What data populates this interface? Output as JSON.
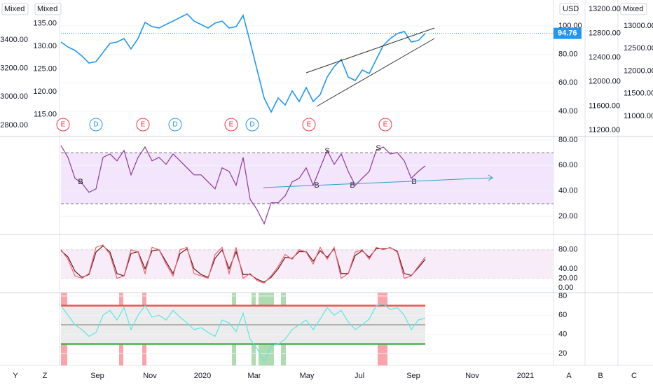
{
  "time_axis": {
    "ticks": [
      "Sep",
      "Nov",
      "2020",
      "Mar",
      "May",
      "Jul",
      "Sep",
      "Nov",
      "2021"
    ]
  },
  "toolbar": {
    "left": [
      "Y",
      "Z"
    ],
    "right": [
      "A",
      "B",
      "C"
    ]
  },
  "chart_data": [
    {
      "type": "line",
      "axis_label": "USD",
      "grid": true,
      "series": [
        {
          "color": "#2196f3",
          "values": [
            88.7,
            85.2,
            82.8,
            78.8,
            73.9,
            74.9,
            81.3,
            87.7,
            88.7,
            91.1,
            83.8,
            91.1,
            102.5,
            99.5,
            98.5,
            101.0,
            103.4,
            105.9,
            108.4,
            103.4,
            101.0,
            98.5,
            102.0,
            103.4,
            98.5,
            99.5,
            107.4,
            88.7,
            69.0,
            49.3,
            39.5,
            49.3,
            44.4,
            54.3,
            46.9,
            56.7,
            46.9,
            51.8,
            64.1,
            71.5,
            76.4,
            64.1,
            61.6,
            69.0,
            66.6,
            76.4,
            86.2,
            91.1,
            94.6,
            96.1,
            88.7,
            89.7,
            94.76
          ]
        }
      ],
      "ylim": [
        22.3,
        118.2
      ],
      "yticks": [
        {
          "value": 40,
          "label": "40.00"
        },
        {
          "value": 60,
          "label": "60.00"
        },
        {
          "value": 80,
          "label": "80.00"
        },
        {
          "value": 100,
          "label": "100.00"
        }
      ],
      "events": [
        {
          "label": "E",
          "color": "#f23645"
        },
        {
          "label": "D",
          "color": "#2196f3"
        },
        {
          "label": "E",
          "color": "#f23645"
        },
        {
          "label": "D",
          "color": "#2196f3"
        },
        {
          "label": "E",
          "color": "#f23645"
        },
        {
          "label": "D",
          "color": "#2196f3"
        },
        {
          "label": "E",
          "color": "#f23645"
        },
        {
          "label": "E",
          "color": "#f23645"
        }
      ],
      "extra_axes": [
        {
          "header": "Mixed",
          "lim": [
            2721,
            3680
          ],
          "ticks": [
            {
              "value": 2800,
              "label": "2800.00"
            },
            {
              "value": 3000,
              "label": "3000.00"
            },
            {
              "value": 3200,
              "label": "3200.00"
            },
            {
              "value": 3400,
              "label": "3400.00"
            }
          ]
        },
        {
          "header": "Mixed",
          "lim": [
            110.2,
            140.2
          ],
          "ticks": [
            {
              "value": 115,
              "label": "115.00"
            },
            {
              "value": 120,
              "label": "120.00"
            },
            {
              "value": 125,
              "label": "125.00"
            },
            {
              "value": 130,
              "label": "130.00"
            },
            {
              "value": 135,
              "label": "135.00"
            }
          ]
        },
        {
          "lim": [
            11096,
            13350
          ],
          "ticks": [
            {
              "value": 11200,
              "label": "11200.00"
            },
            {
              "value": 11600,
              "label": "11600.00"
            },
            {
              "value": 12000,
              "label": "12000.00"
            },
            {
              "value": 12400,
              "label": "12400.00"
            },
            {
              "value": 12800,
              "label": "12800.00"
            },
            {
              "value": 13200,
              "label": "13200.00"
            }
          ]
        },
        {
          "header": "Mixed",
          "lim": [
            10550,
            13574
          ],
          "ticks": [
            {
              "value": 11000,
              "label": "11000.00"
            },
            {
              "value": 11500,
              "label": "11500.00"
            },
            {
              "value": 12000,
              "label": "12000.00"
            },
            {
              "value": 12500,
              "label": "12500.00"
            },
            {
              "value": 13000,
              "label": "13000.00"
            }
          ]
        }
      ]
    },
    {
      "type": "line",
      "band": [
        30,
        70
      ],
      "band_color": "#f3e5fb",
      "grid": true,
      "series": [
        {
          "color": "#8e3a9c",
          "values": [
            75.6,
            66.3,
            49.9,
            46.0,
            38.9,
            41.6,
            66.3,
            69.0,
            63.6,
            71.8,
            52.6,
            66.3,
            74.5,
            63.6,
            66.3,
            60.8,
            69.0,
            63.6,
            58.1,
            52.6,
            52.6,
            47.1,
            41.6,
            58.1,
            55.3,
            44.4,
            66.3,
            33.4,
            25.2,
            14.2,
            30.7,
            30.7,
            36.2,
            47.1,
            49.9,
            58.1,
            44.4,
            58.1,
            71.8,
            60.8,
            69.0,
            55.3,
            44.4,
            49.9,
            55.3,
            71.8,
            74.5,
            69.0,
            70.1,
            63.6,
            49.9,
            55.3,
            59.7
          ]
        }
      ],
      "ylim": [
        5.8,
        82.7
      ],
      "yticks": [
        {
          "value": 20,
          "label": "20.00"
        },
        {
          "value": 40,
          "label": "40.00"
        },
        {
          "value": 60,
          "label": "60.00"
        },
        {
          "value": 80,
          "label": "80.00"
        }
      ],
      "annotations": [
        "B",
        "B",
        "S",
        "B",
        "S",
        "B"
      ]
    },
    {
      "type": "line",
      "band": [
        20,
        80
      ],
      "band_color": "#f8ecf9",
      "grid": true,
      "series": [
        {
          "color": "#5d1a1a",
          "values": [
            78,
            65,
            35,
            22,
            28,
            75,
            88,
            75,
            30,
            25,
            72,
            76,
            40,
            78,
            80,
            55,
            30,
            72,
            82,
            40,
            28,
            22,
            62,
            80,
            40,
            76,
            28,
            28,
            18,
            12,
            22,
            40,
            64,
            62,
            76,
            76,
            56,
            78,
            64,
            82,
            30,
            30,
            68,
            78,
            64,
            82,
            82,
            84,
            77,
            30,
            26,
            42,
            60
          ]
        },
        {
          "color": "#f0616d",
          "values": [
            80,
            60,
            25,
            20,
            30,
            85,
            90,
            70,
            20,
            25,
            80,
            75,
            30,
            85,
            80,
            50,
            25,
            80,
            85,
            30,
            25,
            20,
            70,
            85,
            30,
            85,
            20,
            30,
            15,
            10,
            25,
            45,
            70,
            60,
            80,
            75,
            50,
            85,
            60,
            85,
            20,
            30,
            75,
            80,
            60,
            85,
            80,
            85,
            75,
            20,
            25,
            45,
            65
          ]
        }
      ],
      "ylim": [
        -10,
        112
      ],
      "yticks": [
        {
          "value": 0,
          "label": "0.00"
        },
        {
          "value": 20,
          "label": "20.00"
        },
        {
          "value": 40,
          "label": "40.00"
        },
        {
          "value": 80,
          "label": "80.00"
        }
      ]
    },
    {
      "type": "line",
      "band": [
        30,
        70
      ],
      "band_color": "#ececec",
      "grid": true,
      "levels": [
        {
          "value": 70,
          "color": "#ef5350"
        },
        {
          "value": 50,
          "color": "#9e9e9e"
        },
        {
          "value": 30,
          "color": "#4caf50"
        }
      ],
      "series": [
        {
          "color": "#5ee6e6",
          "values": [
            70,
            60,
            50,
            45,
            38,
            42,
            60,
            65,
            55,
            68,
            45,
            60,
            70,
            58,
            60,
            55,
            65,
            58,
            52,
            45,
            47,
            42,
            38,
            55,
            52,
            43,
            62,
            35,
            25,
            12,
            28,
            30,
            35,
            45,
            50,
            55,
            45,
            56,
            68,
            60,
            65,
            53,
            45,
            50,
            56,
            70,
            72,
            66,
            68,
            60,
            45,
            55,
            57
          ]
        }
      ],
      "ylim": [
        7.7,
        83.6
      ],
      "yticks": [
        20,
        40,
        60,
        80
      ]
    }
  ]
}
